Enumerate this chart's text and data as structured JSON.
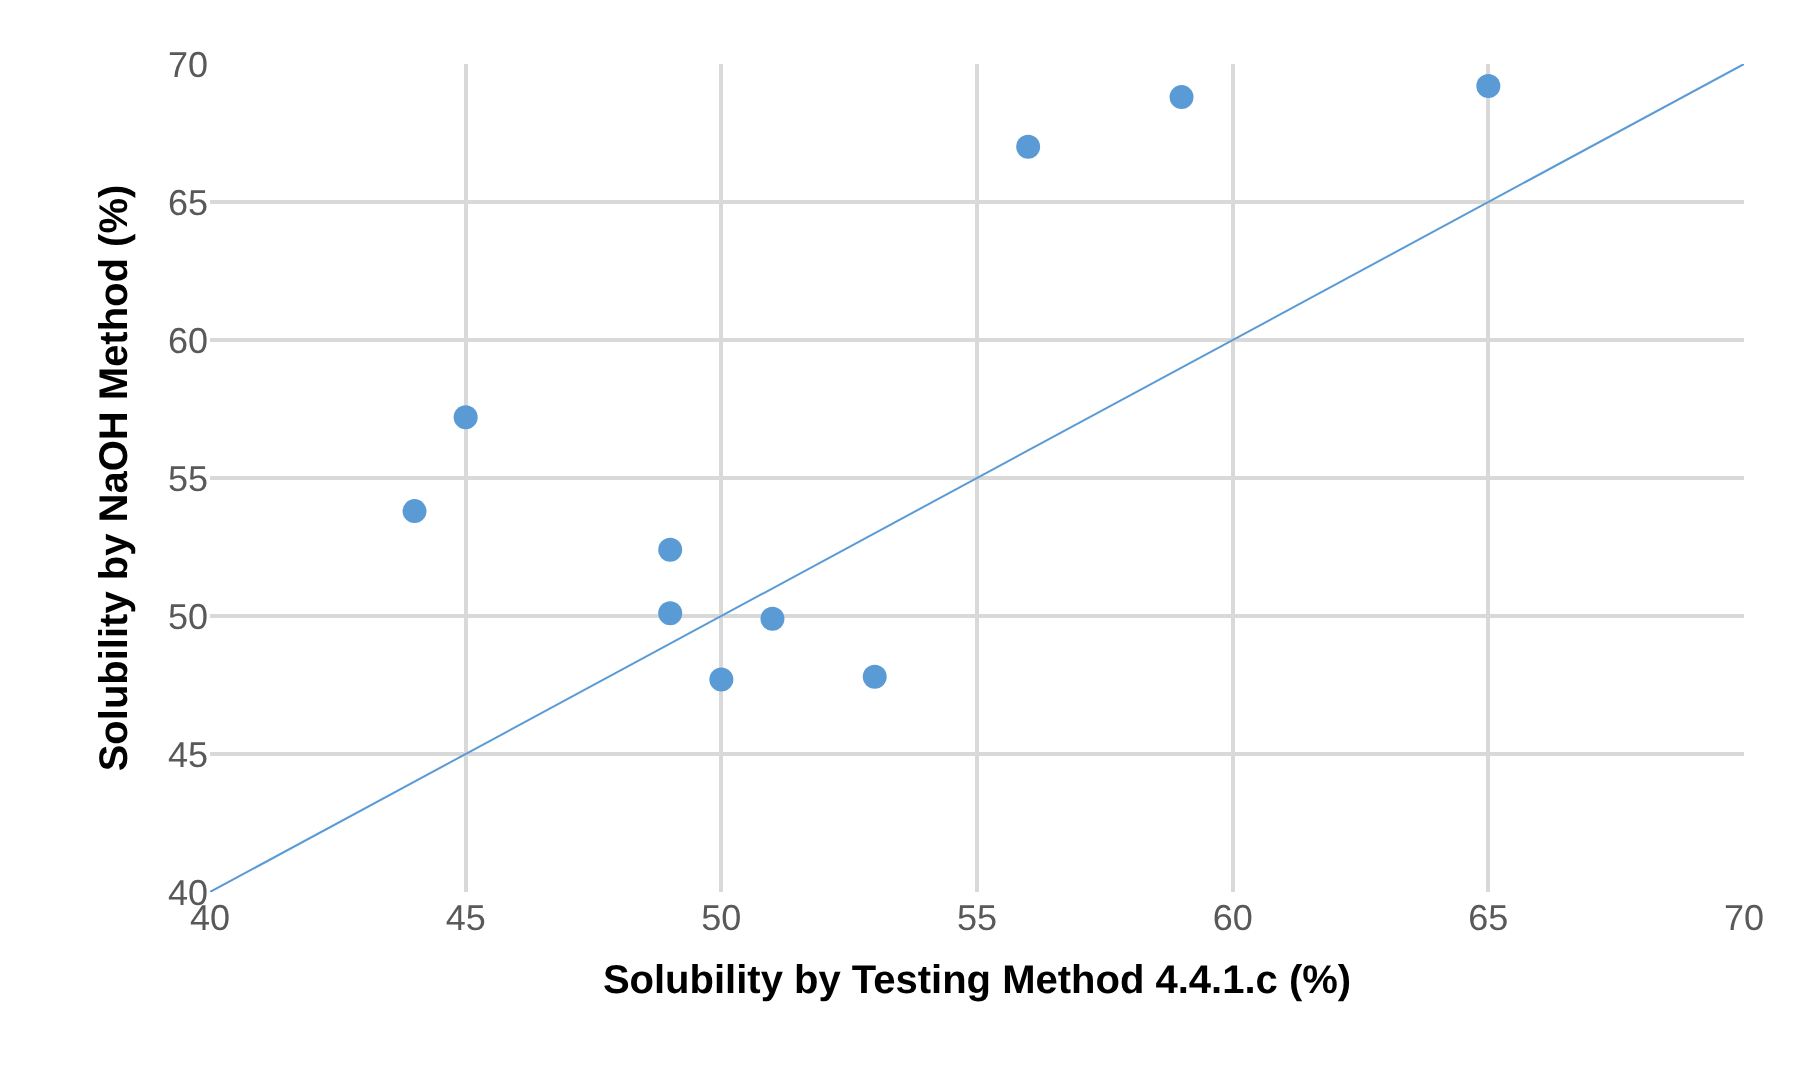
{
  "chart_data": {
    "type": "scatter",
    "xlabel": "Solubility by Testing Method 4.4.1.c (%)",
    "ylabel": "Solubility by NaOH Method (%)",
    "xlim": [
      40,
      70
    ],
    "xticks": [
      40,
      45,
      50,
      55,
      60,
      65,
      70
    ],
    "ylim": [
      40,
      70
    ],
    "yticks": [
      40,
      45,
      50,
      55,
      60,
      65,
      70
    ],
    "grid": true,
    "marker": "circle",
    "series": [
      {
        "color": "#5b9bd5",
        "x": [
          44,
          45,
          49,
          49,
          50,
          51,
          53,
          56,
          59,
          65
        ],
        "values": [
          53.8,
          57.2,
          52.4,
          50.1,
          47.7,
          49.9,
          47.8,
          67.0,
          68.8,
          69.2
        ]
      },
      {
        "type": "line",
        "color": "#5b9bd5",
        "x": [
          40,
          70
        ],
        "values": [
          40,
          70
        ],
        "line_style": "solid",
        "marker": "none"
      }
    ]
  }
}
